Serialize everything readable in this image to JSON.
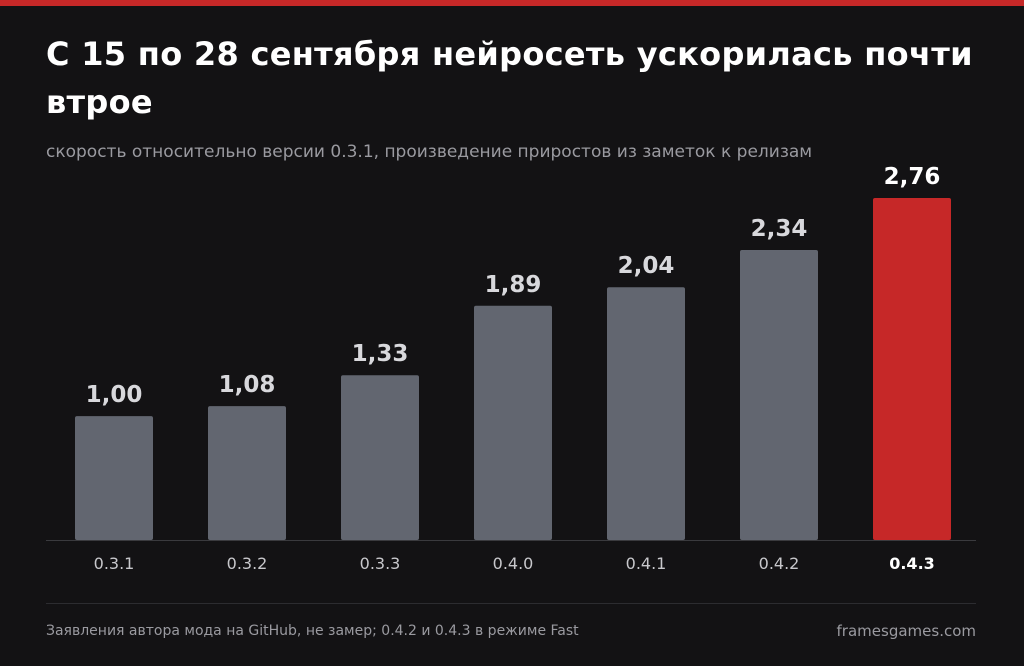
{
  "colors": {
    "background": "#131214",
    "accent": "#c62828",
    "bar": "#626670",
    "value_label": "#d8d8dc",
    "highlight_label": "#ffffff",
    "tick_label": "#c8c8cc",
    "muted_text": "#9a9aa0",
    "axis": "#3a3a3e"
  },
  "header": {
    "title": "С 15 по 28 сентября нейросеть ускорилась почти втрое",
    "subtitle": "скорость относительно версии 0.3.1, произведение приростов из заметок к релизам"
  },
  "chart_data": {
    "type": "bar",
    "title": "С 15 по 28 сентября нейросеть ускорилась почти втрое",
    "subtitle": "скорость относительно версии 0.3.1, произведение приростов из заметок к релизам",
    "categories": [
      "0.3.1",
      "0.3.2",
      "0.3.3",
      "0.4.0",
      "0.4.1",
      "0.4.2",
      "0.4.3"
    ],
    "values": [
      1.0,
      1.08,
      1.33,
      1.89,
      2.04,
      2.34,
      2.76
    ],
    "value_labels": [
      "1,00",
      "1,08",
      "1,33",
      "1,89",
      "2,04",
      "2,34",
      "2,76"
    ],
    "highlight_index": 6,
    "ylim": [
      0,
      2.76
    ],
    "grid": false,
    "legend": "none",
    "xlabel": "",
    "ylabel": ""
  },
  "footer": {
    "note": "Заявления автора мода на GitHub, не замер; 0.4.2 и 0.4.3 в режиме Fast",
    "brand": "framesgames.com"
  }
}
